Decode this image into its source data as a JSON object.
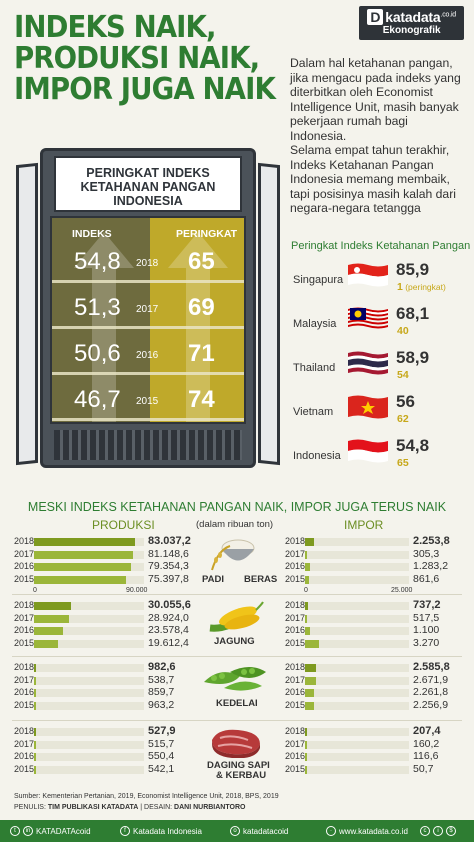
{
  "header": {
    "logo_brand": "katadata",
    "logo_suffix": ".co.id",
    "logo_sub": "Ekonografik",
    "title_lines": [
      "INDEKS NAIK,",
      "PRODUKSI NAIK,",
      "IMPOR JUGA NAIK"
    ]
  },
  "intro": {
    "p1": "Dalam hal ketahanan pangan, jika mengacu pada indeks yang diterbitkan oleh Economist Intelligence Unit, masih banyak pekerjaan rumah bagi Indonesia.",
    "p2": "Selama empat tahun terakhir, Indeks Ketahanan Pangan Indonesia memang membaik, tapi posisinya masih kalah dari negara-negara tetangga"
  },
  "fridge": {
    "title_line1": "PERINGKAT INDEKS",
    "title_line2": "KETAHANAN PANGAN",
    "title_line3": "INDONESIA",
    "col_index": "INDEKS",
    "col_rank": "PERINGKAT"
  },
  "ranking": {
    "title": "Peringkat Indeks Ketahanan Pangan",
    "rank_note": "(peringkat)"
  },
  "colors": {
    "green": "#2e7d32",
    "bar": "#9bb63a",
    "gold": "#c7a81b"
  },
  "chart_data": [
    {
      "type": "table",
      "title": "PERINGKAT INDEKS KETAHANAN PANGAN INDONESIA",
      "columns": [
        "INDEKS",
        "",
        "PERINGKAT"
      ],
      "rows": [
        {
          "year": "2018",
          "index": "54,8",
          "rank": "65"
        },
        {
          "year": "2017",
          "index": "51,3",
          "rank": "69"
        },
        {
          "year": "2016",
          "index": "50,6",
          "rank": "71"
        },
        {
          "year": "2015",
          "index": "46,7",
          "rank": "74"
        }
      ]
    },
    {
      "type": "table",
      "title": "Peringkat Indeks Ketahanan Pangan",
      "rows": [
        {
          "country": "Singapura",
          "index": "85,9",
          "rank": "1"
        },
        {
          "country": "Malaysia",
          "index": "68,1",
          "rank": "40"
        },
        {
          "country": "Thailand",
          "index": "58,9",
          "rank": "54"
        },
        {
          "country": "Vietnam",
          "index": "56",
          "rank": "62"
        },
        {
          "country": "Indonesia",
          "index": "54,8",
          "rank": "65"
        }
      ]
    },
    {
      "type": "bar",
      "title": "MESKI INDEKS KETAHANAN PANGAN NAIK, IMPOR JUGA TERUS NAIK",
      "unit": "(dalam ribuan ton)",
      "categories": [
        "2018",
        "2017",
        "2016",
        "2015"
      ],
      "produksi_label": "PRODUKSI",
      "impor_label": "IMPOR",
      "axis": {
        "produksi_max": 90000,
        "produksi_max_label": "90.000",
        "impor_max": 25000,
        "impor_max_label": "25.000",
        "zero_label": "0"
      },
      "commodities": [
        {
          "name": "PADI BERAS",
          "name_a": "PADI",
          "name_b": "BERAS",
          "produksi": {
            "values": [
              83037.2,
              81148.6,
              79354.3,
              75397.8
            ],
            "labels": [
              "83.037,2",
              "81.148,6",
              "79.354,3",
              "75.397,8"
            ]
          },
          "impor": {
            "values": [
              2253.8,
              305.3,
              1283.2,
              861.6
            ],
            "labels": [
              "2.253,8",
              "305,3",
              "1.283,2",
              "861,6"
            ]
          }
        },
        {
          "name": "JAGUNG",
          "produksi": {
            "values": [
              30055.6,
              28924.0,
              23578.4,
              19612.4
            ],
            "labels": [
              "30.055,6",
              "28.924,0",
              "23.578,4",
              "19.612,4"
            ]
          },
          "impor": {
            "values": [
              737.2,
              517.5,
              1100,
              3270
            ],
            "labels": [
              "737,2",
              "517,5",
              "1.100",
              "3.270"
            ]
          }
        },
        {
          "name": "KEDELAI",
          "produksi": {
            "values": [
              982.6,
              538.7,
              859.7,
              963.2
            ],
            "labels": [
              "982,6",
              "538,7",
              "859,7",
              "963,2"
            ]
          },
          "impor": {
            "values": [
              2585.8,
              2671.9,
              2261.8,
              2256.9
            ],
            "labels": [
              "2.585,8",
              "2.671,9",
              "2.261,8",
              "2.256,9"
            ]
          }
        },
        {
          "name": "DAGING SAPI & KERBAU",
          "name_a": "DAGING SAPI",
          "name_b": "& KERBAU",
          "produksi": {
            "values": [
              527.9,
              515.7,
              550.4,
              542.1
            ],
            "labels": [
              "527,9",
              "515,7",
              "550,4",
              "542,1"
            ]
          },
          "impor": {
            "values": [
              207.4,
              160.2,
              116.6,
              50.7
            ],
            "labels": [
              "207,4",
              "160,2",
              "116,6",
              "50,7"
            ]
          }
        }
      ]
    }
  ],
  "footer": {
    "source": "Sumber: Kementerian Pertanian, 2019, Economist Intelligence Unit, 2018, BPS, 2019",
    "credits_label": "PENULIS:",
    "credits_writer": "TIM PUBLIKASI KATADATA",
    "credits_sep": "| DESAIN:",
    "credits_designer": "DANI NURBIANTORO",
    "linkedin": "KATADATAcoid",
    "facebook": "Katadata Indonesia",
    "instagram": "katadatacoid",
    "website": "www.katadata.co.id"
  }
}
